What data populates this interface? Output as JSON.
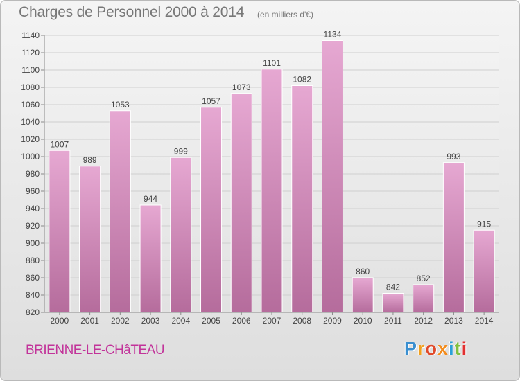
{
  "header": {
    "title": "Charges de Personnel 2000 à 2014",
    "subtitle": "(en milliers d'€)"
  },
  "footer": {
    "commune": "BRIENNE-LE-CHâTEAU"
  },
  "logo": {
    "letters": [
      "P",
      "r",
      "o",
      "x",
      "i",
      "t",
      "i"
    ],
    "colors": [
      "#3a8fd0",
      "#f0a020",
      "#e04a2a",
      "#f28c1e",
      "#2aa0d8",
      "#80c040",
      "#e03030"
    ]
  },
  "colors": {
    "bar_top": "#e6a8d2",
    "bar_bottom": "#b56c9c",
    "grid": "#cfcfcf",
    "axis": "#8a8a8a",
    "text": "#444444"
  },
  "chart_data": {
    "type": "bar",
    "title": "Charges de Personnel 2000 à 2014",
    "subtitle": "(en milliers d'€)",
    "categories": [
      "2000",
      "2001",
      "2002",
      "2003",
      "2004",
      "2005",
      "2006",
      "2007",
      "2008",
      "2009",
      "2010",
      "2011",
      "2012",
      "2013",
      "2014"
    ],
    "values": [
      1007,
      989,
      1053,
      944,
      999,
      1057,
      1073,
      1101,
      1082,
      1134,
      860,
      842,
      852,
      993,
      915
    ],
    "ylim": [
      820,
      1140
    ],
    "yticks": [
      820,
      840,
      860,
      880,
      900,
      920,
      940,
      960,
      980,
      1000,
      1020,
      1040,
      1060,
      1080,
      1100,
      1120,
      1140
    ],
    "grid": true,
    "xlabel": "",
    "ylabel": ""
  }
}
